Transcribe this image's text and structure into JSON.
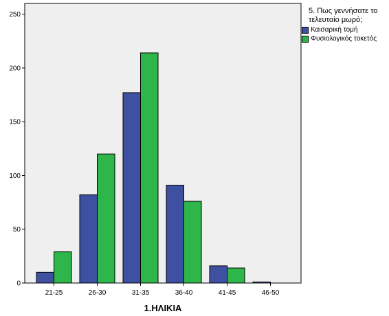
{
  "chart_data": {
    "type": "bar",
    "categories": [
      "21-25",
      "26-30",
      "31-35",
      "36-40",
      "41-45",
      "46-50"
    ],
    "series": [
      {
        "name": "Καισαρική τομή",
        "color": "#3e51a1",
        "values": [
          10,
          82,
          177,
          91,
          16,
          1
        ]
      },
      {
        "name": "Φυσιολογικός τοκετός",
        "color": "#2fb64a",
        "values": [
          29,
          120,
          214,
          76,
          14,
          0
        ]
      }
    ],
    "title": "",
    "xlabel": "1.ΗΛΙΚΙΑ",
    "ylabel": "",
    "ylim": [
      0,
      260
    ],
    "yticks": [
      0,
      50,
      100,
      150,
      200,
      250
    ],
    "legend_title": "5. Πως γεννήσατε το τελευταίο μωρό;",
    "legend_position": "top-right",
    "plot_background": "#efefef",
    "grid": false
  }
}
